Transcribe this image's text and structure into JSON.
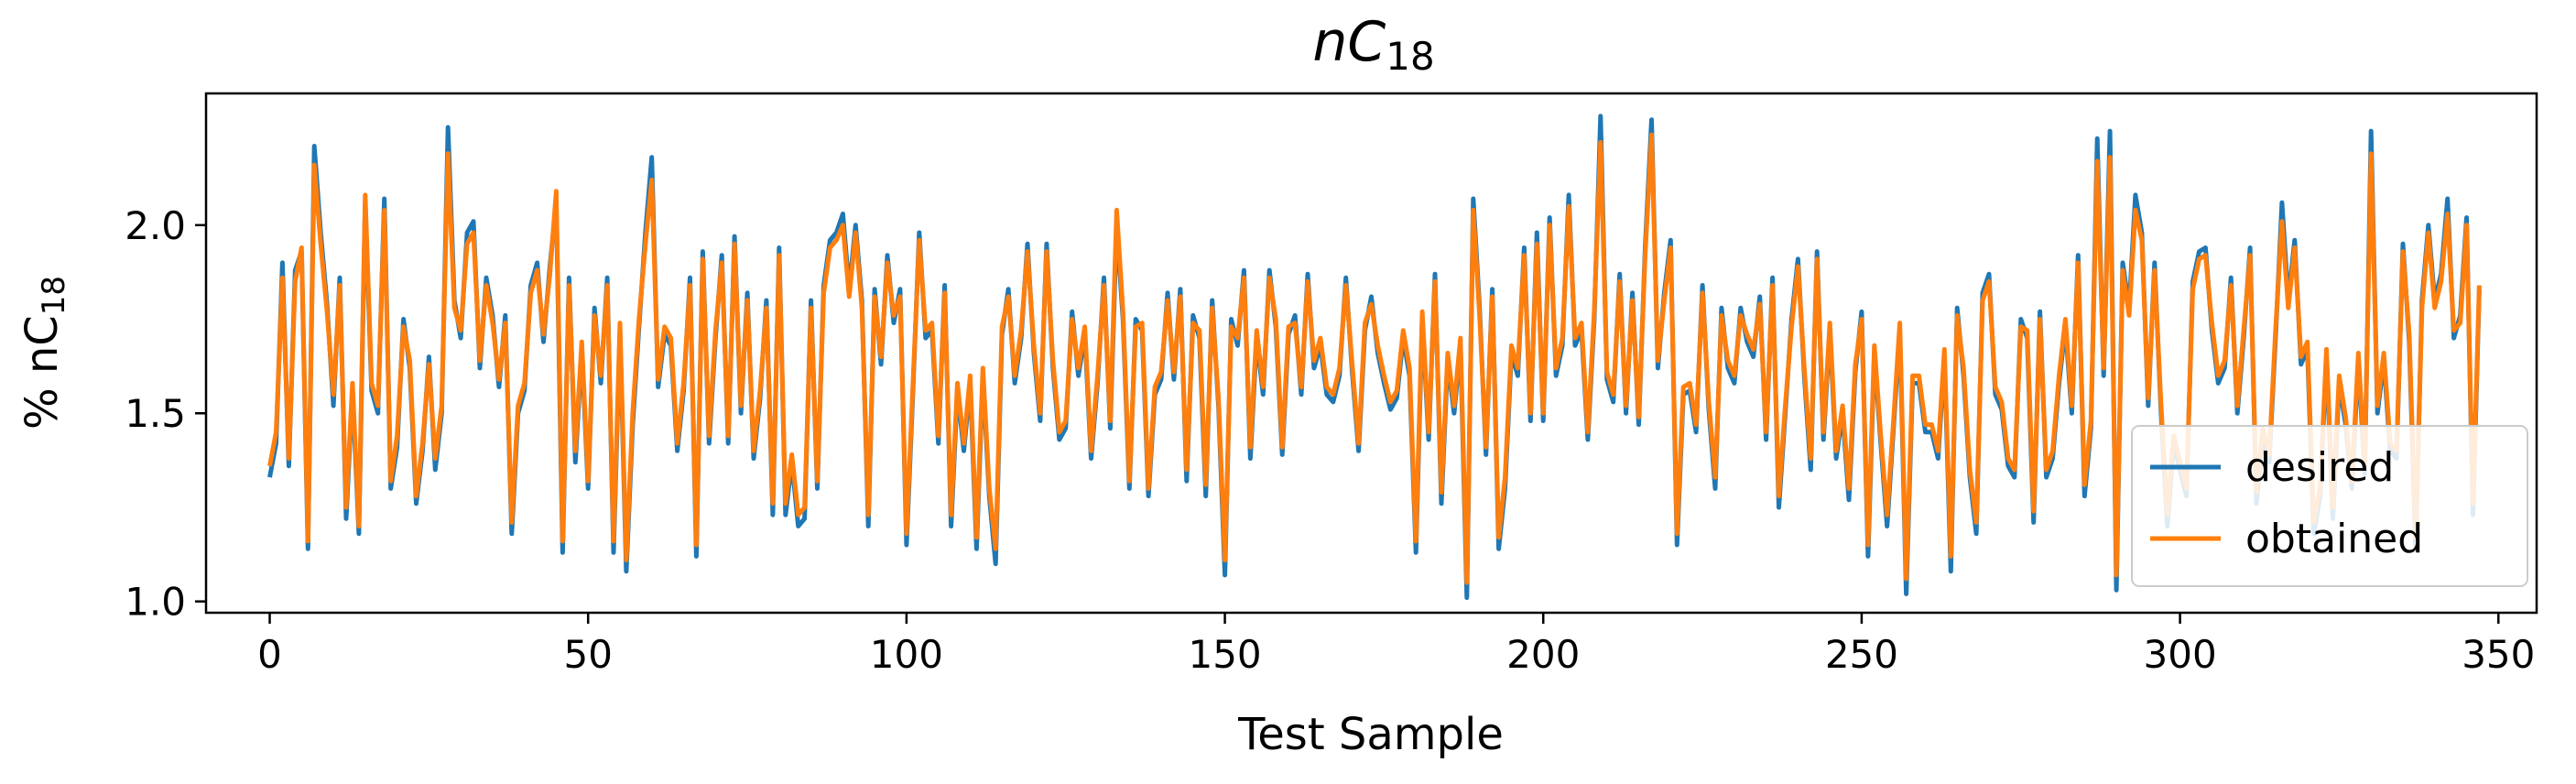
{
  "chart_data": {
    "type": "line",
    "title_main": "nC",
    "title_sub": "18",
    "xlabel": "Test Sample",
    "ylabel_prefix": "% nC",
    "ylabel_sub": "18",
    "xlim": [
      -10,
      356
    ],
    "ylim": [
      0.97,
      2.35
    ],
    "xticks": [
      0,
      50,
      100,
      150,
      200,
      250,
      300,
      350
    ],
    "xtick_labels": [
      "0",
      "50",
      "100",
      "150",
      "200",
      "250",
      "300",
      "350"
    ],
    "yticks": [
      1.0,
      1.5,
      2.0
    ],
    "ytick_labels": [
      "1.0",
      "1.5",
      "2.0"
    ],
    "grid": false,
    "legend_position": "lower-right",
    "series": [
      {
        "name": "desired",
        "color": "#1f77b4",
        "values": [
          1.33,
          1.42,
          1.9,
          1.36,
          1.88,
          1.93,
          1.14,
          2.21,
          1.98,
          1.79,
          1.52,
          1.86,
          1.22,
          1.56,
          1.18,
          2.06,
          1.56,
          1.5,
          2.07,
          1.3,
          1.41,
          1.75,
          1.62,
          1.26,
          1.4,
          1.65,
          1.35,
          1.5,
          2.26,
          1.8,
          1.7,
          1.98,
          2.01,
          1.62,
          1.86,
          1.76,
          1.57,
          1.76,
          1.18,
          1.5,
          1.56,
          1.84,
          1.9,
          1.69,
          1.89,
          2.06,
          1.13,
          1.86,
          1.37,
          1.67,
          1.3,
          1.78,
          1.58,
          1.86,
          1.13,
          1.72,
          1.08,
          1.47,
          1.73,
          1.98,
          2.18,
          1.57,
          1.71,
          1.68,
          1.4,
          1.56,
          1.86,
          1.12,
          1.93,
          1.42,
          1.7,
          1.92,
          1.42,
          1.97,
          1.5,
          1.82,
          1.38,
          1.54,
          1.8,
          1.23,
          1.94,
          1.23,
          1.37,
          1.2,
          1.22,
          1.8,
          1.3,
          1.84,
          1.96,
          1.98,
          2.03,
          1.83,
          2.0,
          1.8,
          1.2,
          1.83,
          1.63,
          1.92,
          1.74,
          1.83,
          1.15,
          1.55,
          1.98,
          1.7,
          1.72,
          1.42,
          1.84,
          1.2,
          1.56,
          1.4,
          1.58,
          1.14,
          1.6,
          1.28,
          1.1,
          1.71,
          1.83,
          1.58,
          1.7,
          1.95,
          1.66,
          1.48,
          1.95,
          1.62,
          1.43,
          1.46,
          1.77,
          1.6,
          1.71,
          1.38,
          1.58,
          1.86,
          1.46,
          2.0,
          1.75,
          1.3,
          1.75,
          1.72,
          1.28,
          1.55,
          1.59,
          1.82,
          1.59,
          1.83,
          1.32,
          1.76,
          1.7,
          1.28,
          1.8,
          1.52,
          1.07,
          1.75,
          1.68,
          1.88,
          1.38,
          1.7,
          1.55,
          1.88,
          1.73,
          1.39,
          1.71,
          1.76,
          1.55,
          1.87,
          1.62,
          1.68,
          1.55,
          1.53,
          1.6,
          1.86,
          1.61,
          1.4,
          1.72,
          1.81,
          1.66,
          1.58,
          1.51,
          1.54,
          1.7,
          1.6,
          1.13,
          1.75,
          1.43,
          1.87,
          1.26,
          1.64,
          1.5,
          1.68,
          1.01,
          2.07,
          1.78,
          1.39,
          1.83,
          1.14,
          1.3,
          1.66,
          1.6,
          1.94,
          1.48,
          1.98,
          1.48,
          2.02,
          1.6,
          1.68,
          2.08,
          1.68,
          1.72,
          1.43,
          1.75,
          2.29,
          1.59,
          1.53,
          1.87,
          1.5,
          1.82,
          1.47,
          1.94,
          2.28,
          1.62,
          1.82,
          1.96,
          1.15,
          1.55,
          1.56,
          1.45,
          1.84,
          1.51,
          1.3,
          1.78,
          1.62,
          1.58,
          1.78,
          1.69,
          1.65,
          1.81,
          1.43,
          1.86,
          1.25,
          1.5,
          1.75,
          1.91,
          1.6,
          1.35,
          1.93,
          1.43,
          1.72,
          1.38,
          1.5,
          1.27,
          1.61,
          1.77,
          1.12,
          1.66,
          1.42,
          1.2,
          1.46,
          1.72,
          1.02,
          1.58,
          1.58,
          1.45,
          1.45,
          1.38,
          1.65,
          1.08,
          1.78,
          1.6,
          1.33,
          1.18,
          1.82,
          1.87,
          1.55,
          1.51,
          1.36,
          1.33,
          1.75,
          1.7,
          1.21,
          1.77,
          1.33,
          1.38,
          1.58,
          1.73,
          1.5,
          1.92,
          1.28,
          1.46,
          2.23,
          1.6,
          2.25,
          1.03,
          1.9,
          1.78,
          2.08,
          1.98,
          1.52,
          1.9,
          1.51,
          1.2,
          1.42,
          1.35,
          1.28,
          1.85,
          1.93,
          1.94,
          1.72,
          1.58,
          1.62,
          1.86,
          1.5,
          1.7,
          1.94,
          1.26,
          1.44,
          1.37,
          1.7,
          2.06,
          1.8,
          1.96,
          1.63,
          1.67,
          1.18,
          1.28,
          1.65,
          1.22,
          1.58,
          1.47,
          1.3,
          1.64,
          1.34,
          2.25,
          1.5,
          1.64,
          1.4,
          1.38,
          1.95,
          1.69,
          1.14,
          1.8,
          2.0,
          1.8,
          1.87,
          2.07,
          1.7,
          1.76,
          2.02,
          1.23,
          1.83
        ]
      },
      {
        "name": "obtained",
        "color": "#ff7f0e",
        "values": [
          1.36,
          1.45,
          1.86,
          1.38,
          1.85,
          1.94,
          1.16,
          2.16,
          1.95,
          1.77,
          1.55,
          1.84,
          1.25,
          1.58,
          1.2,
          2.08,
          1.58,
          1.52,
          2.04,
          1.32,
          1.44,
          1.73,
          1.64,
          1.28,
          1.42,
          1.63,
          1.38,
          1.52,
          2.19,
          1.78,
          1.72,
          1.95,
          1.98,
          1.64,
          1.84,
          1.74,
          1.59,
          1.74,
          1.21,
          1.52,
          1.58,
          1.82,
          1.88,
          1.71,
          1.87,
          2.09,
          1.16,
          1.84,
          1.4,
          1.69,
          1.32,
          1.76,
          1.6,
          1.84,
          1.16,
          1.74,
          1.11,
          1.5,
          1.75,
          1.95,
          2.12,
          1.59,
          1.73,
          1.7,
          1.42,
          1.58,
          1.84,
          1.15,
          1.91,
          1.44,
          1.72,
          1.9,
          1.44,
          1.95,
          1.52,
          1.8,
          1.4,
          1.56,
          1.78,
          1.26,
          1.92,
          1.26,
          1.39,
          1.23,
          1.25,
          1.78,
          1.32,
          1.82,
          1.94,
          1.96,
          2.0,
          1.81,
          1.98,
          1.78,
          1.23,
          1.81,
          1.65,
          1.9,
          1.76,
          1.81,
          1.18,
          1.57,
          1.96,
          1.72,
          1.74,
          1.44,
          1.82,
          1.23,
          1.58,
          1.42,
          1.6,
          1.17,
          1.62,
          1.3,
          1.14,
          1.73,
          1.81,
          1.6,
          1.72,
          1.93,
          1.68,
          1.5,
          1.93,
          1.64,
          1.45,
          1.48,
          1.75,
          1.62,
          1.73,
          1.4,
          1.6,
          1.84,
          1.48,
          2.04,
          1.77,
          1.32,
          1.73,
          1.74,
          1.3,
          1.57,
          1.61,
          1.8,
          1.61,
          1.81,
          1.35,
          1.74,
          1.72,
          1.31,
          1.78,
          1.54,
          1.11,
          1.73,
          1.7,
          1.86,
          1.41,
          1.72,
          1.57,
          1.86,
          1.75,
          1.41,
          1.73,
          1.74,
          1.57,
          1.85,
          1.64,
          1.7,
          1.57,
          1.55,
          1.62,
          1.84,
          1.63,
          1.42,
          1.74,
          1.79,
          1.68,
          1.6,
          1.53,
          1.56,
          1.72,
          1.62,
          1.16,
          1.77,
          1.45,
          1.85,
          1.29,
          1.66,
          1.52,
          1.7,
          1.05,
          2.04,
          1.76,
          1.41,
          1.81,
          1.17,
          1.33,
          1.68,
          1.62,
          1.92,
          1.5,
          1.95,
          1.5,
          2.0,
          1.62,
          1.7,
          2.05,
          1.7,
          1.74,
          1.45,
          1.77,
          2.22,
          1.61,
          1.55,
          1.85,
          1.52,
          1.8,
          1.49,
          1.92,
          2.24,
          1.64,
          1.8,
          1.94,
          1.18,
          1.57,
          1.58,
          1.47,
          1.82,
          1.53,
          1.33,
          1.76,
          1.64,
          1.6,
          1.76,
          1.71,
          1.67,
          1.79,
          1.45,
          1.84,
          1.28,
          1.52,
          1.73,
          1.89,
          1.62,
          1.38,
          1.91,
          1.45,
          1.74,
          1.4,
          1.52,
          1.3,
          1.63,
          1.75,
          1.15,
          1.68,
          1.44,
          1.23,
          1.48,
          1.74,
          1.06,
          1.6,
          1.6,
          1.47,
          1.47,
          1.4,
          1.67,
          1.12,
          1.76,
          1.62,
          1.35,
          1.21,
          1.8,
          1.85,
          1.57,
          1.53,
          1.38,
          1.35,
          1.73,
          1.72,
          1.24,
          1.75,
          1.35,
          1.4,
          1.6,
          1.75,
          1.52,
          1.9,
          1.31,
          1.48,
          2.17,
          1.62,
          2.18,
          1.07,
          1.88,
          1.76,
          2.04,
          1.96,
          1.54,
          1.88,
          1.53,
          1.23,
          1.44,
          1.37,
          1.3,
          1.83,
          1.91,
          1.92,
          1.74,
          1.6,
          1.64,
          1.84,
          1.52,
          1.72,
          1.92,
          1.29,
          1.46,
          1.39,
          1.72,
          2.01,
          1.78,
          1.94,
          1.65,
          1.69,
          1.21,
          1.3,
          1.67,
          1.25,
          1.6,
          1.49,
          1.32,
          1.66,
          1.36,
          2.19,
          1.52,
          1.66,
          1.42,
          1.4,
          1.93,
          1.71,
          1.17,
          1.78,
          1.98,
          1.78,
          1.85,
          2.03,
          1.72,
          1.74,
          2.0,
          1.26,
          1.84
        ]
      }
    ]
  }
}
